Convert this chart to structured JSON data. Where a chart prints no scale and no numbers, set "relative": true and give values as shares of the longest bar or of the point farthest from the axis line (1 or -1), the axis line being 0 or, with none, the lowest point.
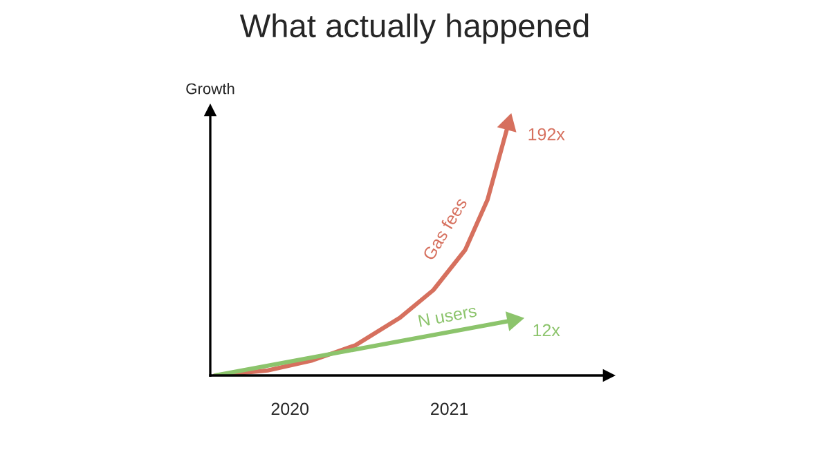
{
  "chart_data": {
    "type": "line",
    "title": "What actually happened",
    "ylabel": "Growth",
    "relative": true,
    "xlim": [
      2020,
      2022.5
    ],
    "xticks": [
      {
        "value": 2020.5,
        "label": "2020"
      },
      {
        "value": 2021.5,
        "label": "2021"
      }
    ],
    "series": [
      {
        "name": "Gas fees",
        "color": "#d6705e",
        "x": [
          2020.03,
          2020.36,
          2020.64,
          2020.91,
          2021.19,
          2021.4,
          2021.6,
          2021.74,
          2021.87
        ],
        "values": [
          0,
          0.02,
          0.06,
          0.12,
          0.23,
          0.34,
          0.5,
          0.7,
          1
        ]
      },
      {
        "name": "N users",
        "color": "#8cc46c",
        "x": [
          2020.03,
          2021.9
        ],
        "values": [
          0,
          0.22
        ]
      }
    ],
    "annotations": [
      {
        "text": "192x",
        "x": 2021.87,
        "y": 1
      },
      {
        "text": "12x",
        "x": 2021.9,
        "y": 0.22
      }
    ],
    "grid": false,
    "line_style": "solid"
  }
}
